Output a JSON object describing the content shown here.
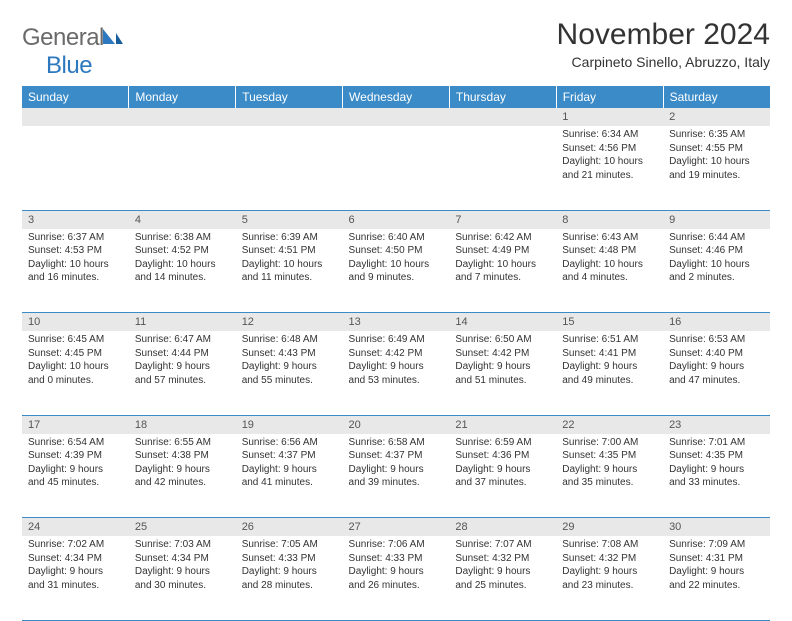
{
  "brand": {
    "part1": "General",
    "part2": "Blue"
  },
  "title": "November 2024",
  "location": "Carpineto Sinello, Abruzzo, Italy",
  "weekday_header_bg": "#3b8bc8",
  "daynum_bg": "#e8e8e8",
  "weekdays": [
    "Sunday",
    "Monday",
    "Tuesday",
    "Wednesday",
    "Thursday",
    "Friday",
    "Saturday"
  ],
  "weeks": [
    [
      null,
      null,
      null,
      null,
      null,
      {
        "n": "1",
        "sr": "Sunrise: 6:34 AM",
        "ss": "Sunset: 4:56 PM",
        "d1": "Daylight: 10 hours",
        "d2": "and 21 minutes."
      },
      {
        "n": "2",
        "sr": "Sunrise: 6:35 AM",
        "ss": "Sunset: 4:55 PM",
        "d1": "Daylight: 10 hours",
        "d2": "and 19 minutes."
      }
    ],
    [
      {
        "n": "3",
        "sr": "Sunrise: 6:37 AM",
        "ss": "Sunset: 4:53 PM",
        "d1": "Daylight: 10 hours",
        "d2": "and 16 minutes."
      },
      {
        "n": "4",
        "sr": "Sunrise: 6:38 AM",
        "ss": "Sunset: 4:52 PM",
        "d1": "Daylight: 10 hours",
        "d2": "and 14 minutes."
      },
      {
        "n": "5",
        "sr": "Sunrise: 6:39 AM",
        "ss": "Sunset: 4:51 PM",
        "d1": "Daylight: 10 hours",
        "d2": "and 11 minutes."
      },
      {
        "n": "6",
        "sr": "Sunrise: 6:40 AM",
        "ss": "Sunset: 4:50 PM",
        "d1": "Daylight: 10 hours",
        "d2": "and 9 minutes."
      },
      {
        "n": "7",
        "sr": "Sunrise: 6:42 AM",
        "ss": "Sunset: 4:49 PM",
        "d1": "Daylight: 10 hours",
        "d2": "and 7 minutes."
      },
      {
        "n": "8",
        "sr": "Sunrise: 6:43 AM",
        "ss": "Sunset: 4:48 PM",
        "d1": "Daylight: 10 hours",
        "d2": "and 4 minutes."
      },
      {
        "n": "9",
        "sr": "Sunrise: 6:44 AM",
        "ss": "Sunset: 4:46 PM",
        "d1": "Daylight: 10 hours",
        "d2": "and 2 minutes."
      }
    ],
    [
      {
        "n": "10",
        "sr": "Sunrise: 6:45 AM",
        "ss": "Sunset: 4:45 PM",
        "d1": "Daylight: 10 hours",
        "d2": "and 0 minutes."
      },
      {
        "n": "11",
        "sr": "Sunrise: 6:47 AM",
        "ss": "Sunset: 4:44 PM",
        "d1": "Daylight: 9 hours",
        "d2": "and 57 minutes."
      },
      {
        "n": "12",
        "sr": "Sunrise: 6:48 AM",
        "ss": "Sunset: 4:43 PM",
        "d1": "Daylight: 9 hours",
        "d2": "and 55 minutes."
      },
      {
        "n": "13",
        "sr": "Sunrise: 6:49 AM",
        "ss": "Sunset: 4:42 PM",
        "d1": "Daylight: 9 hours",
        "d2": "and 53 minutes."
      },
      {
        "n": "14",
        "sr": "Sunrise: 6:50 AM",
        "ss": "Sunset: 4:42 PM",
        "d1": "Daylight: 9 hours",
        "d2": "and 51 minutes."
      },
      {
        "n": "15",
        "sr": "Sunrise: 6:51 AM",
        "ss": "Sunset: 4:41 PM",
        "d1": "Daylight: 9 hours",
        "d2": "and 49 minutes."
      },
      {
        "n": "16",
        "sr": "Sunrise: 6:53 AM",
        "ss": "Sunset: 4:40 PM",
        "d1": "Daylight: 9 hours",
        "d2": "and 47 minutes."
      }
    ],
    [
      {
        "n": "17",
        "sr": "Sunrise: 6:54 AM",
        "ss": "Sunset: 4:39 PM",
        "d1": "Daylight: 9 hours",
        "d2": "and 45 minutes."
      },
      {
        "n": "18",
        "sr": "Sunrise: 6:55 AM",
        "ss": "Sunset: 4:38 PM",
        "d1": "Daylight: 9 hours",
        "d2": "and 42 minutes."
      },
      {
        "n": "19",
        "sr": "Sunrise: 6:56 AM",
        "ss": "Sunset: 4:37 PM",
        "d1": "Daylight: 9 hours",
        "d2": "and 41 minutes."
      },
      {
        "n": "20",
        "sr": "Sunrise: 6:58 AM",
        "ss": "Sunset: 4:37 PM",
        "d1": "Daylight: 9 hours",
        "d2": "and 39 minutes."
      },
      {
        "n": "21",
        "sr": "Sunrise: 6:59 AM",
        "ss": "Sunset: 4:36 PM",
        "d1": "Daylight: 9 hours",
        "d2": "and 37 minutes."
      },
      {
        "n": "22",
        "sr": "Sunrise: 7:00 AM",
        "ss": "Sunset: 4:35 PM",
        "d1": "Daylight: 9 hours",
        "d2": "and 35 minutes."
      },
      {
        "n": "23",
        "sr": "Sunrise: 7:01 AM",
        "ss": "Sunset: 4:35 PM",
        "d1": "Daylight: 9 hours",
        "d2": "and 33 minutes."
      }
    ],
    [
      {
        "n": "24",
        "sr": "Sunrise: 7:02 AM",
        "ss": "Sunset: 4:34 PM",
        "d1": "Daylight: 9 hours",
        "d2": "and 31 minutes."
      },
      {
        "n": "25",
        "sr": "Sunrise: 7:03 AM",
        "ss": "Sunset: 4:34 PM",
        "d1": "Daylight: 9 hours",
        "d2": "and 30 minutes."
      },
      {
        "n": "26",
        "sr": "Sunrise: 7:05 AM",
        "ss": "Sunset: 4:33 PM",
        "d1": "Daylight: 9 hours",
        "d2": "and 28 minutes."
      },
      {
        "n": "27",
        "sr": "Sunrise: 7:06 AM",
        "ss": "Sunset: 4:33 PM",
        "d1": "Daylight: 9 hours",
        "d2": "and 26 minutes."
      },
      {
        "n": "28",
        "sr": "Sunrise: 7:07 AM",
        "ss": "Sunset: 4:32 PM",
        "d1": "Daylight: 9 hours",
        "d2": "and 25 minutes."
      },
      {
        "n": "29",
        "sr": "Sunrise: 7:08 AM",
        "ss": "Sunset: 4:32 PM",
        "d1": "Daylight: 9 hours",
        "d2": "and 23 minutes."
      },
      {
        "n": "30",
        "sr": "Sunrise: 7:09 AM",
        "ss": "Sunset: 4:31 PM",
        "d1": "Daylight: 9 hours",
        "d2": "and 22 minutes."
      }
    ]
  ]
}
